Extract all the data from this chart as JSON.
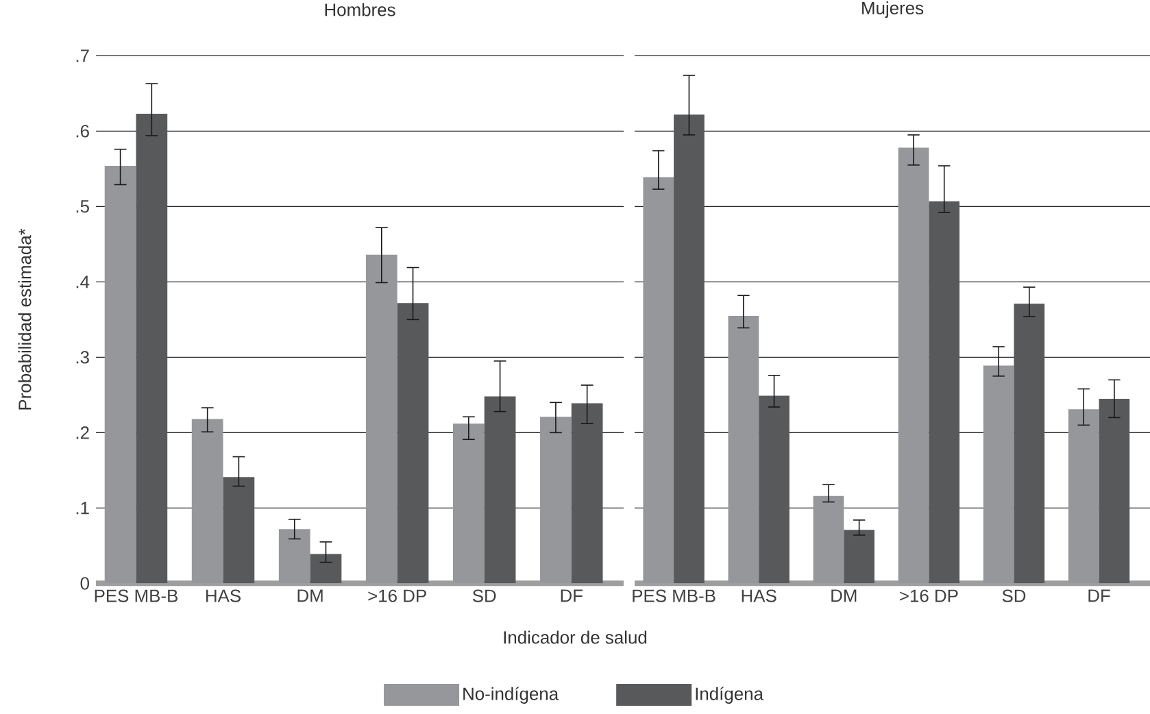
{
  "chart_data": [
    {
      "type": "bar",
      "title": "Hombres",
      "xlabel": "Indicador de salud",
      "ylabel": "Probabilidad estimada*",
      "categories": [
        "PES MB-B",
        "HAS",
        "DM",
        ">16 DP",
        "SD",
        "DF"
      ],
      "ylim": [
        0,
        0.7
      ],
      "yticks": [
        0,
        {
          "value": 0.1,
          "label": ".1"
        },
        {
          "value": 0.2,
          "label": ".2"
        },
        {
          "value": 0.3,
          "label": ".3"
        },
        {
          "value": 0.4,
          "label": ".4"
        },
        {
          "value": 0.5,
          "label": ".5"
        },
        {
          "value": 0.6,
          "label": ".6"
        },
        {
          "value": 0.7,
          "label": ".7"
        }
      ],
      "grid": "y",
      "legend": "bottom",
      "series": [
        {
          "name": "No-indígena",
          "color": "#96979b",
          "values": [
            0.554,
            0.218,
            0.072,
            0.436,
            0.212,
            0.221
          ],
          "errors": [
            [
              0.529,
              0.576
            ],
            [
              0.201,
              0.233
            ],
            [
              0.059,
              0.085
            ],
            [
              0.399,
              0.472
            ],
            [
              0.191,
              0.221
            ],
            [
              0.2,
              0.24
            ]
          ]
        },
        {
          "name": "Indígena",
          "color": "#58595b",
          "values": [
            0.623,
            0.141,
            0.039,
            0.372,
            0.248,
            0.239
          ],
          "errors": [
            [
              0.594,
              0.663
            ],
            [
              0.129,
              0.168
            ],
            [
              0.028,
              0.055
            ],
            [
              0.35,
              0.419
            ],
            [
              0.228,
              0.295
            ],
            [
              0.212,
              0.263
            ]
          ]
        }
      ]
    },
    {
      "type": "bar",
      "title": "Mujeres",
      "categories": [
        "PES MB-B",
        "HAS",
        "DM",
        ">16 DP",
        "SD",
        "DF"
      ],
      "ylim": [
        0,
        0.7
      ],
      "yticks": [
        {
          "value": 0,
          "label": null
        },
        {
          "value": 0.1,
          "label": null
        },
        {
          "value": 0.2,
          "label": null
        },
        {
          "value": 0.3,
          "label": null
        },
        {
          "value": 0.4,
          "label": null
        },
        {
          "value": 0.5,
          "label": null
        },
        {
          "value": 0.6,
          "label": null
        },
        {
          "value": 0.7,
          "label": null
        }
      ],
      "grid": "y",
      "tick_labels": "x",
      "series": [
        {
          "color": "#96979b",
          "values": [
            0.539,
            0.355,
            0.116,
            0.578,
            0.289,
            0.231
          ],
          "errors": [
            [
              0.523,
              0.574
            ],
            [
              0.339,
              0.382
            ],
            [
              0.108,
              0.131
            ],
            [
              0.555,
              0.595
            ],
            [
              0.275,
              0.314
            ],
            [
              0.21,
              0.258
            ]
          ]
        },
        {
          "color": "#58595b",
          "values": [
            0.622,
            0.249,
            0.071,
            0.507,
            0.371,
            0.245
          ],
          "errors": [
            [
              0.595,
              0.674
            ],
            [
              0.234,
              0.276
            ],
            [
              0.064,
              0.084
            ],
            [
              0.492,
              0.554
            ],
            [
              0.354,
              0.393
            ],
            [
              0.22,
              0.27
            ]
          ]
        }
      ]
    }
  ]
}
